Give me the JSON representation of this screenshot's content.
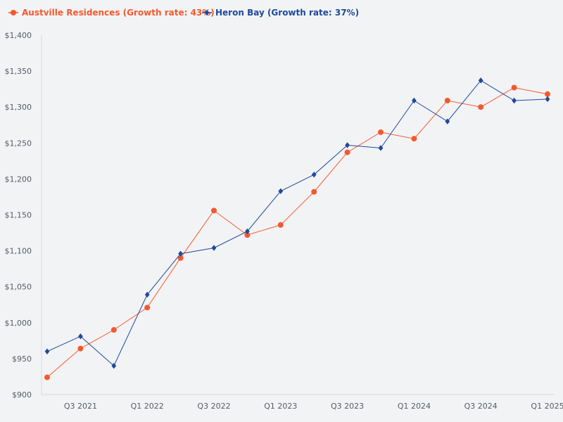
{
  "chart_data": {
    "type": "line",
    "title": "",
    "xlabel": "",
    "ylabel": "",
    "ylim": [
      900,
      1400
    ],
    "y_ticks": [
      900,
      950,
      1000,
      1050,
      1100,
      1150,
      1200,
      1250,
      1300,
      1350,
      1400
    ],
    "y_tick_labels": [
      "$900",
      "$950",
      "$1,000",
      "$1,050",
      "$1,100",
      "$1,150",
      "$1,200",
      "$1,250",
      "$1,300",
      "$1,350",
      "$1,400"
    ],
    "categories": [
      "Q2 2021",
      "Q3 2021",
      "Q4 2021",
      "Q1 2022",
      "Q2 2022",
      "Q3 2022",
      "Q4 2022",
      "Q1 2023",
      "Q2 2023",
      "Q3 2023",
      "Q4 2023",
      "Q1 2024",
      "Q2 2024",
      "Q3 2024",
      "Q4 2024",
      "Q1 2025"
    ],
    "x_tick_labels": [
      {
        "index": 1,
        "label": "Q3 2021"
      },
      {
        "index": 3,
        "label": "Q1 2022"
      },
      {
        "index": 5,
        "label": "Q3 2022"
      },
      {
        "index": 7,
        "label": "Q1 2023"
      },
      {
        "index": 9,
        "label": "Q3 2023"
      },
      {
        "index": 11,
        "label": "Q1 2024"
      },
      {
        "index": 13,
        "label": "Q3 2024"
      },
      {
        "index": 15,
        "label": "Q1 2025"
      }
    ],
    "legend_position": "top-left",
    "grid": false,
    "series": [
      {
        "name": "Austville Residences (Growth rate: 43%)",
        "color": "#f4592e",
        "marker": "circle",
        "values": [
          924,
          964,
          990,
          1021,
          1090,
          1156,
          1122,
          1136,
          1182,
          1237,
          1265,
          1256,
          1309,
          1300,
          1327,
          1318
        ]
      },
      {
        "name": "Heron Bay (Growth rate: 37%)",
        "color": "#1d4a9a",
        "marker": "diamond",
        "values": [
          960,
          981,
          940,
          1039,
          1096,
          1104,
          1127,
          1183,
          1206,
          1247,
          1243,
          1309,
          1280,
          1337,
          1309,
          1311
        ]
      }
    ]
  }
}
